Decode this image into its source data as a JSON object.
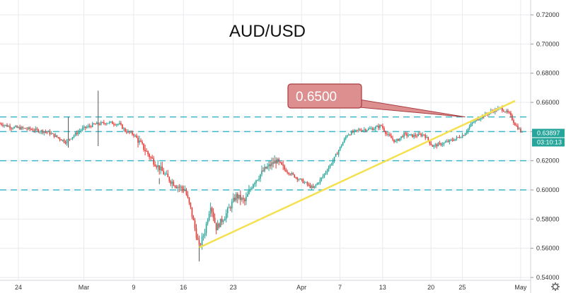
{
  "chart_data": {
    "type": "candlestick",
    "title": "AUD/USD",
    "ylim": [
      0.54,
      0.73
    ],
    "y_ticks": [
      "0.72000",
      "0.70000",
      "0.68000",
      "0.66000",
      "0.64000",
      "0.62000",
      "0.60000",
      "0.58000",
      "0.56000",
      "0.54000"
    ],
    "y_tick_values": [
      0.72,
      0.7,
      0.68,
      0.66,
      0.64,
      0.62,
      0.6,
      0.58,
      0.56,
      0.54
    ],
    "x_tick_labels": [
      {
        "label": "24",
        "bar": 2
      },
      {
        "label": "Mar",
        "bar": 48
      },
      {
        "label": "9",
        "bar": 83
      },
      {
        "label": "16",
        "bar": 118
      },
      {
        "label": "23",
        "bar": 153
      },
      {
        "label": "Apr",
        "bar": 201
      },
      {
        "label": "7",
        "bar": 228
      },
      {
        "label": "13",
        "bar": 258
      },
      {
        "label": "20",
        "bar": 292
      },
      {
        "label": "25",
        "bar": 314
      },
      {
        "label": "May",
        "bar": 355
      }
    ],
    "current_price": {
      "label": "0.63897",
      "value": 0.63897,
      "color": "#26a69a"
    },
    "countdown": {
      "label": "03:10:13",
      "color": "#26a69a"
    },
    "horizontal_levels": [
      0.65,
      0.64,
      0.62,
      0.6
    ],
    "callout": {
      "label": "0.6500",
      "bar_anchor": 327,
      "value_anchor": 0.65
    },
    "trendline": {
      "start": {
        "bar": 140,
        "value": 0.5605
      },
      "end": {
        "bar": 362,
        "value": 0.661
      },
      "color": "#f5e050"
    },
    "colors": {
      "up": "#26a69a",
      "down": "#e53935",
      "grid": "#e8eaee",
      "level": "#3fb8c8",
      "callout_fill": "#dd8f90",
      "callout_stroke": "#a83c40"
    },
    "n_bars": 368,
    "anchors": [
      [
        0,
        0.6455
      ],
      [
        8,
        0.643
      ],
      [
        20,
        0.6418
      ],
      [
        34,
        0.6395
      ],
      [
        46,
        0.633
      ],
      [
        58,
        0.642
      ],
      [
        66,
        0.6448
      ],
      [
        76,
        0.6462
      ],
      [
        84,
        0.645
      ],
      [
        88,
        0.6405
      ],
      [
        94,
        0.638
      ],
      [
        100,
        0.63
      ],
      [
        106,
        0.622
      ],
      [
        112,
        0.615
      ],
      [
        118,
        0.608
      ],
      [
        124,
        0.603
      ],
      [
        130,
        0.6
      ],
      [
        134,
        0.587
      ],
      [
        140,
        0.5605
      ],
      [
        144,
        0.572
      ],
      [
        148,
        0.59
      ],
      [
        152,
        0.574
      ],
      [
        158,
        0.582
      ],
      [
        166,
        0.596
      ],
      [
        172,
        0.592
      ],
      [
        178,
        0.605
      ],
      [
        186,
        0.614
      ],
      [
        194,
        0.62
      ],
      [
        200,
        0.614
      ],
      [
        206,
        0.61
      ],
      [
        214,
        0.605
      ],
      [
        220,
        0.601
      ],
      [
        226,
        0.608
      ],
      [
        234,
        0.62
      ],
      [
        244,
        0.638
      ],
      [
        252,
        0.641
      ],
      [
        262,
        0.642
      ],
      [
        268,
        0.644
      ],
      [
        272,
        0.638
      ],
      [
        278,
        0.633
      ],
      [
        284,
        0.638
      ],
      [
        290,
        0.637
      ],
      [
        298,
        0.638
      ],
      [
        304,
        0.63
      ],
      [
        312,
        0.632
      ],
      [
        320,
        0.635
      ],
      [
        326,
        0.638
      ],
      [
        332,
        0.646
      ],
      [
        338,
        0.65
      ],
      [
        346,
        0.654
      ],
      [
        352,
        0.656
      ],
      [
        358,
        0.652
      ],
      [
        362,
        0.645
      ],
      [
        367,
        0.639
      ]
    ]
  }
}
